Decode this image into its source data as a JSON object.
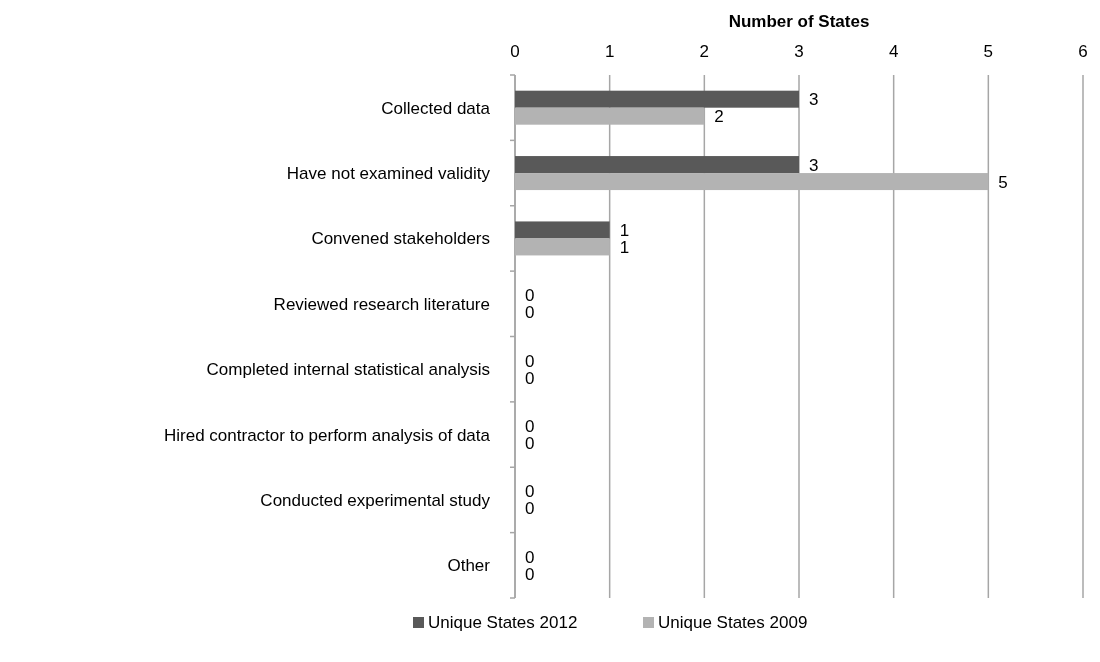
{
  "chart_data": {
    "type": "bar",
    "orientation": "horizontal",
    "xlabel": "Number of States",
    "categories": [
      "Collected data",
      "Have not examined validity",
      "Convened stakeholders",
      "Reviewed research literature",
      "Completed internal statistical analysis",
      "Hired contractor to perform analysis of data",
      "Conducted experimental study",
      "Other"
    ],
    "series": [
      {
        "name": "Unique States 2012",
        "color": "#595959",
        "values": [
          3,
          3,
          1,
          0,
          0,
          0,
          0,
          0
        ]
      },
      {
        "name": "Unique States 2009",
        "color": "#b3b3b3",
        "values": [
          2,
          5,
          1,
          0,
          0,
          0,
          0,
          0
        ]
      }
    ],
    "xlim": [
      0,
      6
    ],
    "xticks": [
      0,
      1,
      2,
      3,
      4,
      5,
      6
    ],
    "grid": "x",
    "legend": "bottom",
    "data_labels": true
  }
}
